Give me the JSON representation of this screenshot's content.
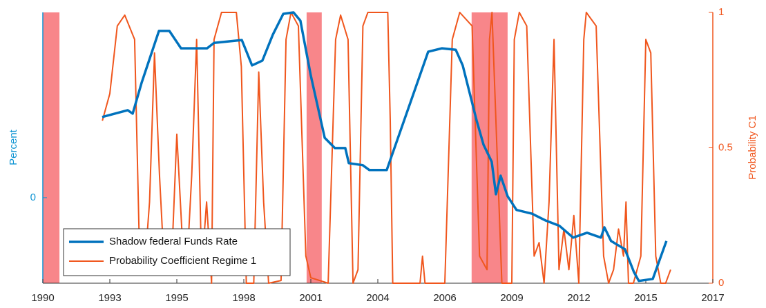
{
  "chart_data": {
    "type": "line",
    "xlim": [
      1990,
      2017
    ],
    "xticks": [
      {
        "value": 1990,
        "label": "1990"
      },
      {
        "value": 1992.7,
        "label": "1993"
      },
      {
        "value": 1995.4,
        "label": "1995"
      },
      {
        "value": 1998.1,
        "label": "1998"
      },
      {
        "value": 2000.8,
        "label": "2001"
      },
      {
        "value": 2003.5,
        "label": "2004"
      },
      {
        "value": 2006.2,
        "label": "2006"
      },
      {
        "value": 2008.9,
        "label": "2009"
      },
      {
        "value": 2011.6,
        "label": "2012"
      },
      {
        "value": 2014.3,
        "label": "2015"
      },
      {
        "value": 2017,
        "label": "2017"
      }
    ],
    "ylabel": "Percent",
    "ylim": [
      -3,
      6.5
    ],
    "yticks": [
      0
    ],
    "y2label": "Probability C1",
    "y2lim": [
      0,
      1
    ],
    "y2ticks": [
      0,
      0.5,
      1
    ],
    "shaded_regions": [
      [
        1990,
        1990.67
      ],
      [
        2000.63,
        2001.24
      ],
      [
        2007.28,
        2008.73
      ]
    ],
    "shade_color": "#f8868a",
    "legend": "lower left",
    "series": [
      {
        "name": "Shadow federal Funds Rate",
        "color": "#0072bd",
        "x": [
          1992.39,
          1993.42,
          1993.62,
          1993.98,
          1994.68,
          1995.1,
          1995.57,
          1996.62,
          1996.9,
          1998.02,
          1998.43,
          1998.85,
          1999.27,
          1999.69,
          2000.1,
          2000.38,
          2000.8,
          2001.36,
          2001.77,
          2002.19,
          2002.33,
          2002.89,
          2003.16,
          2003.86,
          2005.53,
          2006.09,
          2006.64,
          2006.92,
          2007.48,
          2007.76,
          2008.09,
          2008.26,
          2008.45,
          2008.73,
          2009.09,
          2009.71,
          2010.26,
          2010.82,
          2011.37,
          2011.93,
          2012.49,
          2012.63,
          2012.9,
          2013.46,
          2013.82,
          2014.02,
          2014.58,
          2015.13
        ],
        "values": [
          2.83,
          3.07,
          2.95,
          4.03,
          5.85,
          5.85,
          5.24,
          5.24,
          5.43,
          5.53,
          4.64,
          4.81,
          5.72,
          6.45,
          6.5,
          6.21,
          4.28,
          2.1,
          1.74,
          1.74,
          1.21,
          1.14,
          0.97,
          0.97,
          5.12,
          5.24,
          5.19,
          4.64,
          2.71,
          1.86,
          1.26,
          0.12,
          0.77,
          0.05,
          -0.43,
          -0.56,
          -0.8,
          -0.99,
          -1.4,
          -1.23,
          -1.4,
          -1.04,
          -1.52,
          -1.81,
          -2.61,
          -2.92,
          -2.85,
          -1.52
        ]
      },
      {
        "name": "Probability Coefficient Regime 1",
        "color": "#f0561d",
        "axis": "y2",
        "x": [
          1992.4,
          1992.7,
          1993.0,
          1993.3,
          1993.7,
          1993.9,
          1994.1,
          1994.3,
          1994.5,
          1994.7,
          1994.9,
          1995.2,
          1995.4,
          1995.6,
          1995.8,
          1996.0,
          1996.2,
          1996.4,
          1996.6,
          1996.8,
          1996.9,
          1997.2,
          1997.8,
          1998.0,
          1998.2,
          1998.5,
          1998.7,
          1998.9,
          1999.1,
          1999.6,
          1999.8,
          2000.0,
          2000.3,
          2000.6,
          2000.8,
          2001.5,
          2001.8,
          2002.0,
          2002.3,
          2002.5,
          2002.7,
          2002.9,
          2003.1,
          2003.9,
          2004.0,
          2004.1,
          2005.2,
          2005.3,
          2005.4,
          2006.2,
          2006.5,
          2006.8,
          2007.3,
          2007.6,
          2007.9,
          2008.0,
          2008.1,
          2008.3,
          2008.5,
          2008.9,
          2009.0,
          2009.2,
          2009.5,
          2009.8,
          2010.0,
          2010.2,
          2010.4,
          2010.6,
          2010.8,
          2011.0,
          2011.2,
          2011.4,
          2011.6,
          2011.8,
          2011.9,
          2012.3,
          2012.6,
          2012.8,
          2013.0,
          2013.2,
          2013.4,
          2013.5,
          2013.6,
          2013.8,
          2014.1,
          2014.3,
          2014.5,
          2014.7,
          2014.9,
          2015.1,
          2015.3
        ],
        "values": [
          0.6,
          0.7,
          0.95,
          0.99,
          0.9,
          0.1,
          0.05,
          0.3,
          0.85,
          0.4,
          0.05,
          0.1,
          0.55,
          0.2,
          0.05,
          0.4,
          0.9,
          0.05,
          0.3,
          0.0,
          0.9,
          1,
          1,
          0.8,
          0.0,
          0.0,
          0.78,
          0.3,
          0.0,
          0.01,
          0.9,
          1,
          0.95,
          0.1,
          0.02,
          0.0,
          0.9,
          0.99,
          0.9,
          0.0,
          0.05,
          0.95,
          1,
          1,
          0.6,
          0.0,
          0.0,
          0.1,
          0.0,
          0.0,
          0.9,
          1,
          0.95,
          0.1,
          0.05,
          0.9,
          1,
          0.5,
          0.0,
          0.0,
          0.9,
          1,
          0.95,
          0.1,
          0.15,
          0.0,
          0.3,
          0.9,
          0.05,
          0.2,
          0.05,
          0.25,
          0.0,
          0.9,
          1,
          0.95,
          0.1,
          0.0,
          0.05,
          0.2,
          0.1,
          0.3,
          0.0,
          0.0,
          0.1,
          0.9,
          0.85,
          0.1,
          0.0,
          0.0,
          0.05
        ]
      }
    ]
  }
}
